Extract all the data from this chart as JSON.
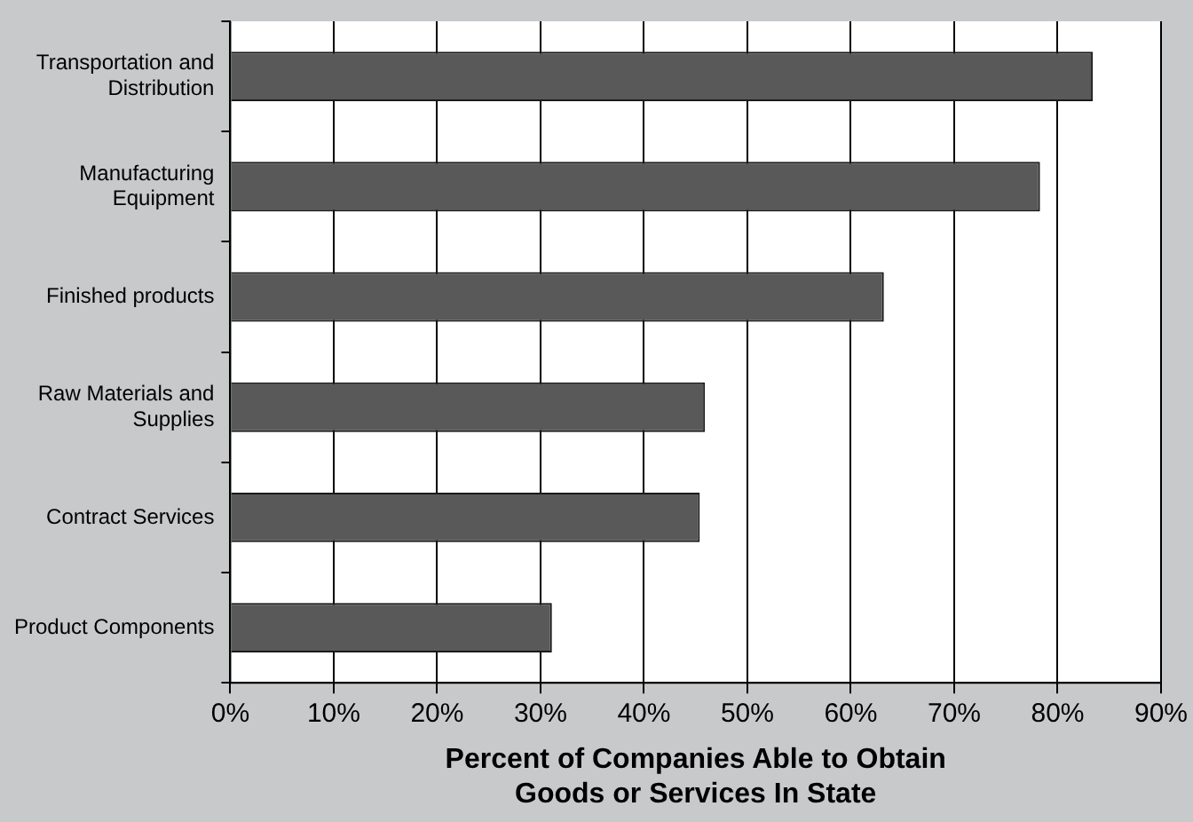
{
  "chart_data": {
    "type": "bar",
    "orientation": "horizontal",
    "categories": [
      "Transportation and Distribution",
      "Manufacturing Equipment",
      "Finished products",
      "Raw Materials and Supplies",
      "Contract Services",
      "Product Components"
    ],
    "values": [
      83.4,
      78.3,
      63.2,
      45.9,
      45.4,
      31.1
    ],
    "color": "#595959",
    "xlabel": "Percent of Companies Able to Obtain Goods or Services In State",
    "xlim": [
      0,
      90
    ],
    "xticks": [
      {
        "value": 0,
        "label": "0%"
      },
      {
        "value": 10,
        "label": "10%"
      },
      {
        "value": 20,
        "label": "20%"
      },
      {
        "value": 30,
        "label": "30%"
      },
      {
        "value": 40,
        "label": "40%"
      },
      {
        "value": 50,
        "label": "50%"
      },
      {
        "value": 60,
        "label": "60%"
      },
      {
        "value": 70,
        "label": "70%"
      },
      {
        "value": 80,
        "label": "80%"
      },
      {
        "value": 90,
        "label": "90%"
      }
    ],
    "grid": "x",
    "legend": false
  }
}
